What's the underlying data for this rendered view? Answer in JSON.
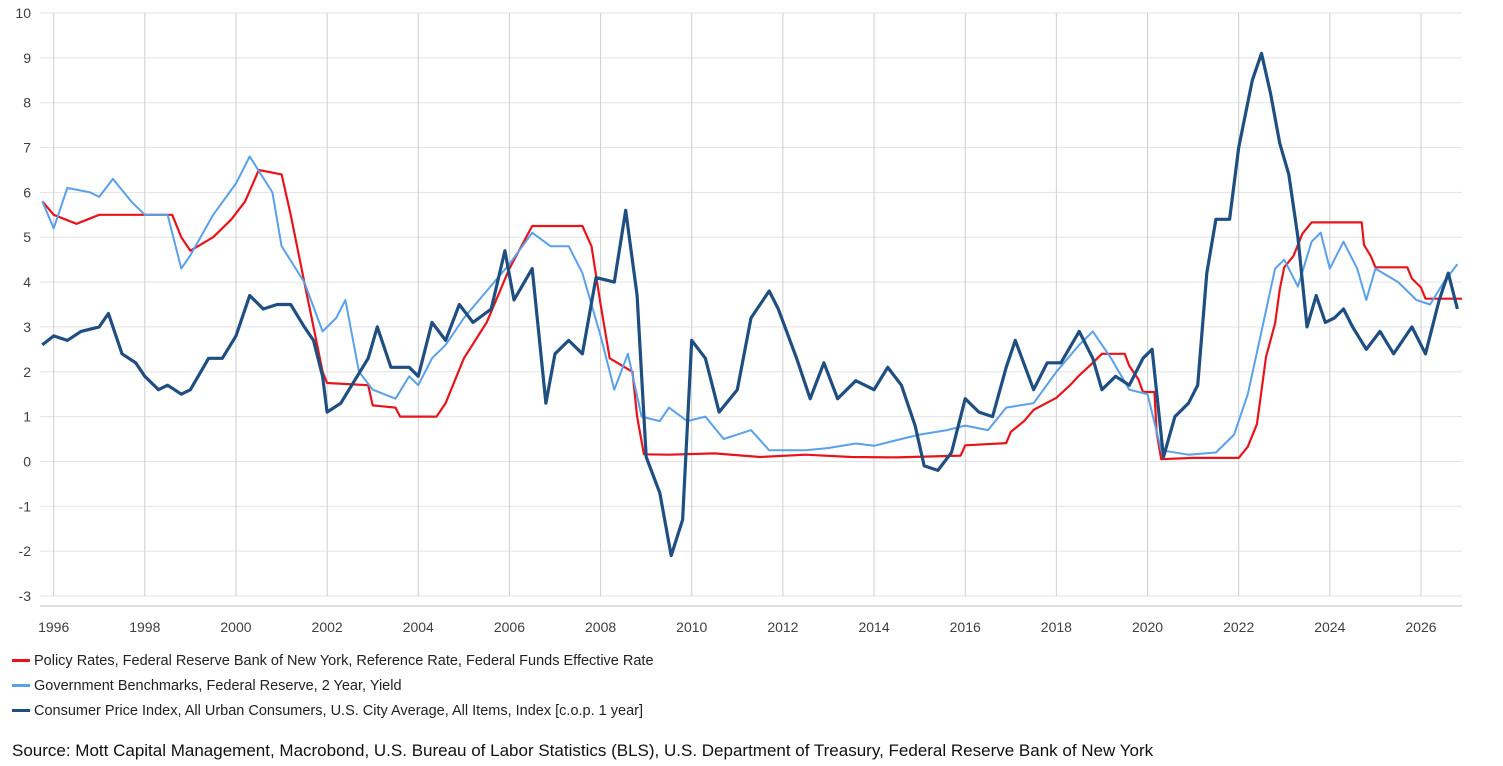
{
  "chart_data": {
    "type": "line",
    "title": "",
    "xlabel": "",
    "ylabel": "",
    "xlim": [
      1995.7,
      2026.9
    ],
    "ylim": [
      -3,
      10
    ],
    "yticks": [
      -3,
      -2,
      -1,
      0,
      1,
      2,
      3,
      4,
      5,
      6,
      7,
      8,
      9,
      10
    ],
    "xticks": [
      1996,
      1998,
      2000,
      2002,
      2004,
      2006,
      2008,
      2010,
      2012,
      2014,
      2016,
      2018,
      2020,
      2022,
      2024,
      2026
    ],
    "grid": true,
    "legend_position": "bottom",
    "series": [
      {
        "name": "Policy Rates, Federal Reserve Bank of New York, Reference Rate, Federal Funds Effective Rate",
        "color": "#e8141b",
        "points": [
          [
            1995.75,
            5.8
          ],
          [
            1996.0,
            5.5
          ],
          [
            1996.5,
            5.3
          ],
          [
            1997.0,
            5.5
          ],
          [
            1997.5,
            5.5
          ],
          [
            1998.0,
            5.5
          ],
          [
            1998.6,
            5.5
          ],
          [
            1998.8,
            5.0
          ],
          [
            1999.0,
            4.7
          ],
          [
            1999.5,
            5.0
          ],
          [
            1999.9,
            5.4
          ],
          [
            2000.2,
            5.8
          ],
          [
            2000.5,
            6.5
          ],
          [
            2001.0,
            6.4
          ],
          [
            2001.2,
            5.5
          ],
          [
            2001.5,
            4.0
          ],
          [
            2001.7,
            3.0
          ],
          [
            2001.9,
            2.0
          ],
          [
            2002.0,
            1.75
          ],
          [
            2002.9,
            1.7
          ],
          [
            2003.0,
            1.25
          ],
          [
            2003.5,
            1.2
          ],
          [
            2003.6,
            1.0
          ],
          [
            2004.4,
            1.0
          ],
          [
            2004.6,
            1.3
          ],
          [
            2005.0,
            2.3
          ],
          [
            2005.5,
            3.1
          ],
          [
            2006.0,
            4.3
          ],
          [
            2006.5,
            5.25
          ],
          [
            2007.6,
            5.25
          ],
          [
            2007.8,
            4.8
          ],
          [
            2008.0,
            3.5
          ],
          [
            2008.2,
            2.3
          ],
          [
            2008.7,
            2.0
          ],
          [
            2008.8,
            1.0
          ],
          [
            2008.95,
            0.16
          ],
          [
            2009.5,
            0.15
          ],
          [
            2010.5,
            0.18
          ],
          [
            2011.5,
            0.1
          ],
          [
            2012.5,
            0.15
          ],
          [
            2013.5,
            0.1
          ],
          [
            2014.5,
            0.09
          ],
          [
            2015.9,
            0.13
          ],
          [
            2016.0,
            0.36
          ],
          [
            2016.9,
            0.41
          ],
          [
            2017.0,
            0.66
          ],
          [
            2017.3,
            0.91
          ],
          [
            2017.5,
            1.15
          ],
          [
            2018.0,
            1.42
          ],
          [
            2018.3,
            1.7
          ],
          [
            2018.5,
            1.92
          ],
          [
            2018.8,
            2.2
          ],
          [
            2019.0,
            2.4
          ],
          [
            2019.5,
            2.4
          ],
          [
            2019.6,
            2.13
          ],
          [
            2019.8,
            1.83
          ],
          [
            2019.9,
            1.55
          ],
          [
            2020.15,
            1.55
          ],
          [
            2020.2,
            0.65
          ],
          [
            2020.3,
            0.05
          ],
          [
            2021.0,
            0.08
          ],
          [
            2022.0,
            0.08
          ],
          [
            2022.2,
            0.33
          ],
          [
            2022.4,
            0.83
          ],
          [
            2022.5,
            1.58
          ],
          [
            2022.6,
            2.33
          ],
          [
            2022.8,
            3.08
          ],
          [
            2022.9,
            3.83
          ],
          [
            2023.0,
            4.33
          ],
          [
            2023.2,
            4.58
          ],
          [
            2023.3,
            4.83
          ],
          [
            2023.4,
            5.08
          ],
          [
            2023.6,
            5.33
          ],
          [
            2024.7,
            5.33
          ],
          [
            2024.75,
            4.83
          ],
          [
            2024.9,
            4.58
          ],
          [
            2025.0,
            4.33
          ],
          [
            2025.7,
            4.33
          ],
          [
            2025.8,
            4.08
          ],
          [
            2026.0,
            3.88
          ],
          [
            2026.1,
            3.63
          ],
          [
            2026.9,
            3.63
          ]
        ]
      },
      {
        "name": "Government Benchmarks, Federal Reserve, 2 Year, Yield",
        "color": "#5aa0ea",
        "points": [
          [
            1995.75,
            5.8
          ],
          [
            1996.0,
            5.2
          ],
          [
            1996.3,
            6.1
          ],
          [
            1996.8,
            6.0
          ],
          [
            1997.0,
            5.9
          ],
          [
            1997.3,
            6.3
          ],
          [
            1997.7,
            5.8
          ],
          [
            1998.0,
            5.5
          ],
          [
            1998.5,
            5.5
          ],
          [
            1998.8,
            4.3
          ],
          [
            1999.0,
            4.6
          ],
          [
            1999.5,
            5.5
          ],
          [
            2000.0,
            6.2
          ],
          [
            2000.3,
            6.8
          ],
          [
            2000.8,
            6.0
          ],
          [
            2001.0,
            4.8
          ],
          [
            2001.5,
            4.0
          ],
          [
            2001.9,
            2.9
          ],
          [
            2002.2,
            3.2
          ],
          [
            2002.4,
            3.6
          ],
          [
            2002.7,
            2.0
          ],
          [
            2003.0,
            1.6
          ],
          [
            2003.5,
            1.4
          ],
          [
            2003.8,
            1.9
          ],
          [
            2004.0,
            1.7
          ],
          [
            2004.3,
            2.3
          ],
          [
            2004.6,
            2.6
          ],
          [
            2005.0,
            3.2
          ],
          [
            2005.5,
            3.8
          ],
          [
            2006.0,
            4.4
          ],
          [
            2006.5,
            5.1
          ],
          [
            2006.9,
            4.8
          ],
          [
            2007.3,
            4.8
          ],
          [
            2007.6,
            4.2
          ],
          [
            2008.0,
            2.8
          ],
          [
            2008.3,
            1.6
          ],
          [
            2008.6,
            2.4
          ],
          [
            2008.9,
            1.0
          ],
          [
            2009.3,
            0.9
          ],
          [
            2009.5,
            1.2
          ],
          [
            2009.9,
            0.9
          ],
          [
            2010.3,
            1.0
          ],
          [
            2010.7,
            0.5
          ],
          [
            2011.0,
            0.6
          ],
          [
            2011.3,
            0.7
          ],
          [
            2011.7,
            0.25
          ],
          [
            2012.5,
            0.25
          ],
          [
            2013.0,
            0.3
          ],
          [
            2013.6,
            0.4
          ],
          [
            2014.0,
            0.35
          ],
          [
            2014.6,
            0.5
          ],
          [
            2015.0,
            0.6
          ],
          [
            2015.6,
            0.7
          ],
          [
            2016.0,
            0.8
          ],
          [
            2016.5,
            0.7
          ],
          [
            2016.9,
            1.2
          ],
          [
            2017.5,
            1.3
          ],
          [
            2018.0,
            2.0
          ],
          [
            2018.5,
            2.6
          ],
          [
            2018.8,
            2.9
          ],
          [
            2019.2,
            2.3
          ],
          [
            2019.6,
            1.6
          ],
          [
            2020.0,
            1.5
          ],
          [
            2020.3,
            0.25
          ],
          [
            2020.9,
            0.15
          ],
          [
            2021.5,
            0.2
          ],
          [
            2021.9,
            0.6
          ],
          [
            2022.2,
            1.5
          ],
          [
            2022.5,
            2.9
          ],
          [
            2022.8,
            4.3
          ],
          [
            2023.0,
            4.5
          ],
          [
            2023.3,
            3.9
          ],
          [
            2023.6,
            4.9
          ],
          [
            2023.8,
            5.1
          ],
          [
            2024.0,
            4.3
          ],
          [
            2024.3,
            4.9
          ],
          [
            2024.6,
            4.3
          ],
          [
            2024.8,
            3.6
          ],
          [
            2025.0,
            4.3
          ],
          [
            2025.5,
            4.0
          ],
          [
            2025.9,
            3.6
          ],
          [
            2026.2,
            3.5
          ],
          [
            2026.5,
            4.0
          ],
          [
            2026.8,
            4.4
          ]
        ]
      },
      {
        "name": "Consumer Price Index, All Urban Consumers, U.S. City Average, All Items, Index [c.o.p. 1 year]",
        "color": "#1f4e80",
        "points": [
          [
            1995.75,
            2.6
          ],
          [
            1996.0,
            2.8
          ],
          [
            1996.3,
            2.7
          ],
          [
            1996.6,
            2.9
          ],
          [
            1997.0,
            3.0
          ],
          [
            1997.2,
            3.3
          ],
          [
            1997.5,
            2.4
          ],
          [
            1997.8,
            2.2
          ],
          [
            1998.0,
            1.9
          ],
          [
            1998.3,
            1.6
          ],
          [
            1998.5,
            1.7
          ],
          [
            1998.8,
            1.5
          ],
          [
            1999.0,
            1.6
          ],
          [
            1999.4,
            2.3
          ],
          [
            1999.7,
            2.3
          ],
          [
            2000.0,
            2.8
          ],
          [
            2000.3,
            3.7
          ],
          [
            2000.6,
            3.4
          ],
          [
            2000.9,
            3.5
          ],
          [
            2001.2,
            3.5
          ],
          [
            2001.5,
            3.0
          ],
          [
            2001.7,
            2.7
          ],
          [
            2001.9,
            1.9
          ],
          [
            2002.0,
            1.1
          ],
          [
            2002.3,
            1.3
          ],
          [
            2002.6,
            1.8
          ],
          [
            2002.9,
            2.3
          ],
          [
            2003.1,
            3.0
          ],
          [
            2003.4,
            2.1
          ],
          [
            2003.8,
            2.1
          ],
          [
            2004.0,
            1.9
          ],
          [
            2004.3,
            3.1
          ],
          [
            2004.6,
            2.7
          ],
          [
            2004.9,
            3.5
          ],
          [
            2005.2,
            3.1
          ],
          [
            2005.6,
            3.4
          ],
          [
            2005.9,
            4.7
          ],
          [
            2006.1,
            3.6
          ],
          [
            2006.5,
            4.3
          ],
          [
            2006.8,
            1.3
          ],
          [
            2007.0,
            2.4
          ],
          [
            2007.3,
            2.7
          ],
          [
            2007.6,
            2.4
          ],
          [
            2007.9,
            4.1
          ],
          [
            2008.3,
            4.0
          ],
          [
            2008.55,
            5.6
          ],
          [
            2008.8,
            3.7
          ],
          [
            2009.0,
            0.1
          ],
          [
            2009.3,
            -0.7
          ],
          [
            2009.55,
            -2.1
          ],
          [
            2009.8,
            -1.3
          ],
          [
            2010.0,
            2.7
          ],
          [
            2010.3,
            2.3
          ],
          [
            2010.6,
            1.1
          ],
          [
            2011.0,
            1.6
          ],
          [
            2011.3,
            3.2
          ],
          [
            2011.7,
            3.8
          ],
          [
            2011.9,
            3.4
          ],
          [
            2012.3,
            2.3
          ],
          [
            2012.6,
            1.4
          ],
          [
            2012.9,
            2.2
          ],
          [
            2013.2,
            1.4
          ],
          [
            2013.6,
            1.8
          ],
          [
            2014.0,
            1.6
          ],
          [
            2014.3,
            2.1
          ],
          [
            2014.6,
            1.7
          ],
          [
            2014.9,
            0.8
          ],
          [
            2015.1,
            -0.1
          ],
          [
            2015.4,
            -0.2
          ],
          [
            2015.7,
            0.2
          ],
          [
            2016.0,
            1.4
          ],
          [
            2016.3,
            1.1
          ],
          [
            2016.6,
            1.0
          ],
          [
            2016.9,
            2.1
          ],
          [
            2017.1,
            2.7
          ],
          [
            2017.5,
            1.6
          ],
          [
            2017.8,
            2.2
          ],
          [
            2018.1,
            2.2
          ],
          [
            2018.5,
            2.9
          ],
          [
            2018.8,
            2.3
          ],
          [
            2019.0,
            1.6
          ],
          [
            2019.3,
            1.9
          ],
          [
            2019.6,
            1.7
          ],
          [
            2019.9,
            2.3
          ],
          [
            2020.1,
            2.5
          ],
          [
            2020.35,
            0.1
          ],
          [
            2020.6,
            1.0
          ],
          [
            2020.9,
            1.3
          ],
          [
            2021.1,
            1.7
          ],
          [
            2021.3,
            4.2
          ],
          [
            2021.5,
            5.4
          ],
          [
            2021.8,
            5.4
          ],
          [
            2022.0,
            7.0
          ],
          [
            2022.3,
            8.5
          ],
          [
            2022.5,
            9.1
          ],
          [
            2022.7,
            8.2
          ],
          [
            2022.9,
            7.1
          ],
          [
            2023.1,
            6.4
          ],
          [
            2023.3,
            5.0
          ],
          [
            2023.5,
            3.0
          ],
          [
            2023.7,
            3.7
          ],
          [
            2023.9,
            3.1
          ],
          [
            2024.1,
            3.2
          ],
          [
            2024.3,
            3.4
          ],
          [
            2024.5,
            3.0
          ],
          [
            2024.8,
            2.5
          ],
          [
            2025.1,
            2.9
          ],
          [
            2025.4,
            2.4
          ],
          [
            2025.8,
            3.0
          ],
          [
            2026.1,
            2.4
          ],
          [
            2026.4,
            3.6
          ],
          [
            2026.6,
            4.2
          ],
          [
            2026.8,
            3.4
          ]
        ]
      }
    ]
  },
  "source": "Source: Mott Capital Management, Macrobond, U.S. Bureau of Labor Statistics (BLS), U.S. Department of Treasury, Federal Reserve Bank of New York"
}
